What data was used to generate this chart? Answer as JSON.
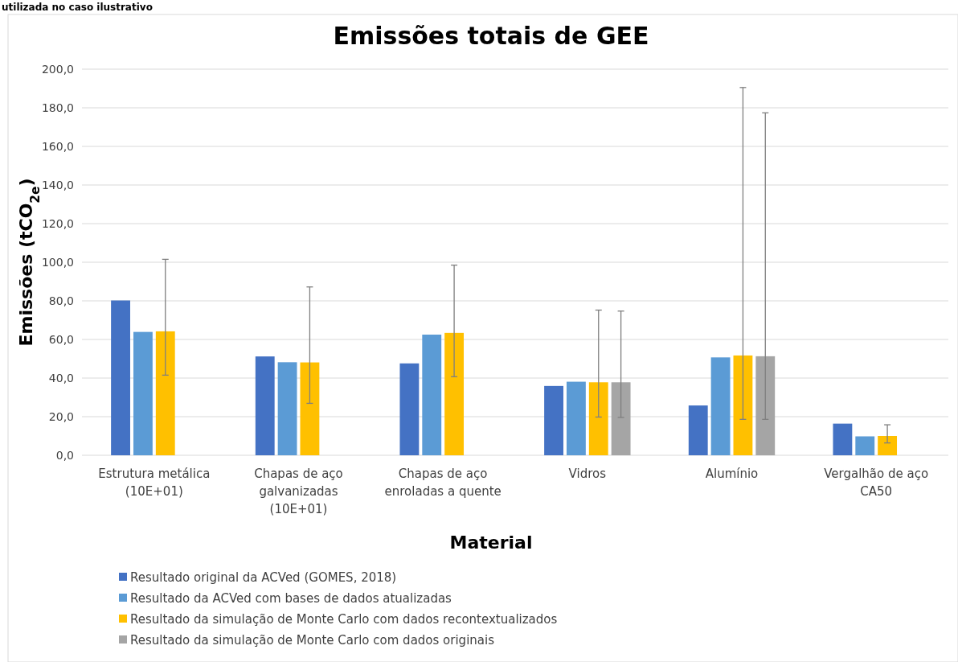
{
  "chart_data": {
    "type": "bar",
    "title": "Emissões totais de GEE",
    "xlabel": "Material",
    "ylabel": "Emissões (tCO$_{2e}$)",
    "annotations": [
      "utilizada no caso ilustrativo"
    ],
    "categories": [
      "Estrutura metálica (10E+01)",
      "Chapas de aço galvanizadas (10E+01)",
      "Chapas de aço enroladas a quente",
      "Vidros",
      "Alumínio",
      "Vergalhão de aço CA50"
    ],
    "series": [
      {
        "name": "Resultado original da ACVed (GOMES, 2018)",
        "color": "#4472c4",
        "values": [
          80.2,
          51.2,
          47.6,
          35.9,
          25.8,
          16.4
        ]
      },
      {
        "name": "Resultado da ACVed com bases de dados atualizadas",
        "color": "#5b9bd5",
        "values": [
          63.9,
          48.2,
          62.5,
          38.1,
          50.7,
          9.8
        ]
      },
      {
        "name": "Resultado da simulação de Monte Carlo com dados recontextualizados",
        "color": "#ffc000",
        "values": [
          64.2,
          48.1,
          63.4,
          37.8,
          51.7,
          10.0
        ],
        "errors": [
          [
            41.5,
            101.5
          ],
          [
            26.9,
            87.2
          ],
          [
            40.7,
            98.5
          ],
          [
            19.8,
            75.2
          ],
          [
            18.6,
            190.5
          ],
          [
            6.4,
            15.8
          ]
        ]
      },
      {
        "name": "Resultado da simulação de Monte Carlo com dados originais",
        "color": "#a5a5a5",
        "values": [
          null,
          null,
          null,
          37.8,
          51.3,
          null
        ],
        "errors": [
          null,
          null,
          null,
          [
            19.6,
            74.7
          ],
          [
            18.6,
            177.4
          ],
          null
        ]
      }
    ],
    "ylim": [
      0,
      200
    ],
    "yticks": [
      {
        "value": 0,
        "label": "0,0"
      },
      {
        "value": 20,
        "label": "20,0"
      },
      {
        "value": 40,
        "label": "40,0"
      },
      {
        "value": 60,
        "label": "60,0"
      },
      {
        "value": 80,
        "label": "80,0"
      },
      {
        "value": 100,
        "label": "100,0"
      },
      {
        "value": 120,
        "label": "120,0"
      },
      {
        "value": 140,
        "label": "140,0"
      },
      {
        "value": 160,
        "label": "160,0"
      },
      {
        "value": 180,
        "label": "180,0"
      },
      {
        "value": 200,
        "label": "200,0"
      }
    ],
    "grid": "y",
    "legend": "bottom"
  }
}
